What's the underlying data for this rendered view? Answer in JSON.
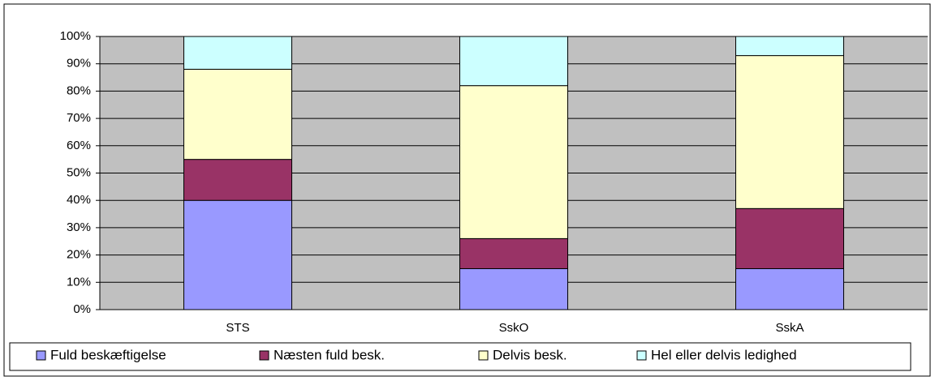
{
  "chart_data": {
    "type": "stacked_bar",
    "categories": [
      "STS",
      "SskO",
      "SskA"
    ],
    "series": [
      {
        "name": "Fuld beskæftigelse",
        "color": "#9999ff",
        "values": [
          40,
          15,
          15
        ]
      },
      {
        "name": "Næsten fuld besk.",
        "color": "#993366",
        "values": [
          15,
          11,
          22
        ]
      },
      {
        "name": "Delvis besk.",
        "color": "#ffffcc",
        "values": [
          33,
          56,
          56
        ]
      },
      {
        "name": "Hel eller delvis ledighed",
        "color": "#ccffff",
        "values": [
          12,
          18,
          7
        ]
      }
    ],
    "ylim": [
      0,
      100
    ],
    "yticks": [
      {
        "value": 0,
        "label": "0%"
      },
      {
        "value": 10,
        "label": "10%"
      },
      {
        "value": 20,
        "label": "20%"
      },
      {
        "value": 30,
        "label": "30%"
      },
      {
        "value": 40,
        "label": "40%"
      },
      {
        "value": 50,
        "label": "50%"
      },
      {
        "value": 60,
        "label": "60%"
      },
      {
        "value": 70,
        "label": "70%"
      },
      {
        "value": 80,
        "label": "80%"
      },
      {
        "value": 90,
        "label": "90%"
      },
      {
        "value": 100,
        "label": "100%"
      }
    ],
    "grid": true,
    "legend": "bottom"
  }
}
